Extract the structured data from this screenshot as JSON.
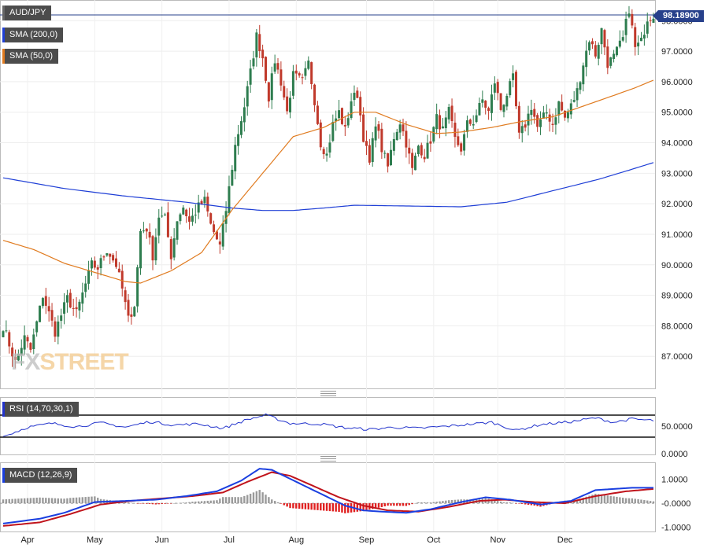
{
  "symbol": "AUD/JPY",
  "current_price": "98.18900",
  "legends": {
    "sma200": "SMA (200,0)",
    "sma50": "SMA (50,0)",
    "rsi": "RSI (14,70,30,1)",
    "macd": "MACD (12,26,9)"
  },
  "colors": {
    "up": "#2e7d4f",
    "down": "#c0392b",
    "sma200": "#1f3fd6",
    "sma50": "#e07b20",
    "rsi": "#2233cc",
    "macd": "#1a3fe0",
    "signal": "#c0141c",
    "hist_pos": "#9a9a9a",
    "hist_neg": "#e02020",
    "price_tag": "#27408b"
  },
  "logo": {
    "part1": "FX",
    "part2": "STREET"
  },
  "chart_data": [
    {
      "type": "candlestick",
      "title": "AUD/JPY",
      "x_labels": [
        "Apr",
        "May",
        "Jun",
        "Jul",
        "Aug",
        "Sep",
        "Oct",
        "Nov",
        "Dec"
      ],
      "y_ticks": [
        "87.0000",
        "88.0000",
        "89.0000",
        "90.0000",
        "91.0000",
        "92.0000",
        "93.0000",
        "94.0000",
        "95.0000",
        "96.0000",
        "97.0000",
        "98.0000"
      ],
      "ylim": [
        86.0,
        98.6
      ],
      "current_price": 98.189,
      "series": [
        {
          "name": "AUD/JPY",
          "close_path": [
            [
              0,
              88.0
            ],
            [
              4,
              86.8
            ],
            [
              7,
              87.6
            ],
            [
              9,
              87.2
            ],
            [
              13,
              89.0
            ],
            [
              17,
              87.8
            ],
            [
              21,
              88.9
            ],
            [
              24,
              88.4
            ],
            [
              29,
              90.0
            ],
            [
              31,
              89.9
            ],
            [
              34,
              90.5
            ],
            [
              37,
              90.0
            ],
            [
              39,
              89.2
            ],
            [
              41,
              88.2
            ],
            [
              43,
              88.7
            ],
            [
              45,
              91.1
            ],
            [
              47,
              91.2
            ],
            [
              49,
              90.3
            ],
            [
              51,
              91.6
            ],
            [
              53,
              91.5
            ],
            [
              55,
              90.3
            ],
            [
              57,
              91.5
            ],
            [
              59,
              91.9
            ],
            [
              61,
              91.4
            ],
            [
              64,
              91.9
            ],
            [
              66,
              92.1
            ],
            [
              68,
              91.3
            ],
            [
              71,
              90.6
            ],
            [
              73,
              91.8
            ],
            [
              76,
              93.9
            ],
            [
              79,
              95.2
            ],
            [
              81,
              96.3
            ],
            [
              83,
              97.5
            ],
            [
              85,
              96.8
            ],
            [
              87,
              95.5
            ],
            [
              89,
              96.7
            ],
            [
              91,
              96.0
            ],
            [
              93,
              95.0
            ],
            [
              95,
              96.2
            ],
            [
              98,
              96.0
            ],
            [
              100,
              96.6
            ],
            [
              102,
              95.4
            ],
            [
              104,
              94.0
            ],
            [
              106,
              93.6
            ],
            [
              108,
              94.6
            ],
            [
              110,
              95.0
            ],
            [
              112,
              94.4
            ],
            [
              114,
              95.4
            ],
            [
              116,
              95.6
            ],
            [
              118,
              94.2
            ],
            [
              120,
              93.3
            ],
            [
              122,
              94.7
            ],
            [
              124,
              93.8
            ],
            [
              126,
              93.2
            ],
            [
              128,
              94.2
            ],
            [
              130,
              94.7
            ],
            [
              132,
              94.0
            ],
            [
              134,
              93.1
            ],
            [
              136,
              93.9
            ],
            [
              138,
              93.6
            ],
            [
              140,
              94.1
            ],
            [
              142,
              94.8
            ],
            [
              144,
              94.4
            ],
            [
              146,
              95.0
            ],
            [
              148,
              94.1
            ],
            [
              150,
              93.8
            ],
            [
              152,
              94.6
            ],
            [
              154,
              94.7
            ],
            [
              157,
              95.4
            ],
            [
              159,
              95.0
            ],
            [
              161,
              96.0
            ],
            [
              163,
              95.1
            ],
            [
              165,
              95.6
            ],
            [
              167,
              96.1
            ],
            [
              169,
              94.2
            ],
            [
              171,
              94.6
            ],
            [
              173,
              95.2
            ],
            [
              175,
              94.5
            ],
            [
              178,
              95.0
            ],
            [
              180,
              94.6
            ],
            [
              182,
              95.3
            ],
            [
              184,
              94.8
            ],
            [
              186,
              95.2
            ],
            [
              188,
              95.7
            ],
            [
              190,
              96.6
            ],
            [
              192,
              97.4
            ],
            [
              194,
              96.9
            ],
            [
              196,
              97.7
            ],
            [
              198,
              96.6
            ],
            [
              200,
              96.8
            ],
            [
              203,
              97.4
            ],
            [
              205,
              98.4
            ],
            [
              207,
              97.1
            ],
            [
              209,
              97.3
            ],
            [
              211,
              98.1
            ],
            [
              213,
              98.2
            ]
          ]
        },
        {
          "name": "SMA (200,0)",
          "path": [
            [
              0,
              92.85
            ],
            [
              20,
              92.5
            ],
            [
              40,
              92.25
            ],
            [
              60,
              92.05
            ],
            [
              75,
              91.86
            ],
            [
              85,
              91.78
            ],
            [
              95,
              91.78
            ],
            [
              105,
              91.86
            ],
            [
              115,
              91.95
            ],
            [
              130,
              91.93
            ],
            [
              150,
              91.9
            ],
            [
              165,
              92.05
            ],
            [
              175,
              92.3
            ],
            [
              185,
              92.55
            ],
            [
              195,
              92.8
            ],
            [
              205,
              93.1
            ],
            [
              213,
              93.35
            ]
          ]
        },
        {
          "name": "SMA (50,0)",
          "path": [
            [
              0,
              90.8
            ],
            [
              10,
              90.5
            ],
            [
              20,
              90.05
            ],
            [
              30,
              89.75
            ],
            [
              40,
              89.45
            ],
            [
              45,
              89.4
            ],
            [
              55,
              89.8
            ],
            [
              65,
              90.4
            ],
            [
              75,
              91.8
            ],
            [
              85,
              93.0
            ],
            [
              95,
              94.2
            ],
            [
              105,
              94.5
            ],
            [
              115,
              95.0
            ],
            [
              122,
              95.0
            ],
            [
              132,
              94.6
            ],
            [
              142,
              94.3
            ],
            [
              150,
              94.35
            ],
            [
              160,
              94.5
            ],
            [
              170,
              94.7
            ],
            [
              180,
              94.85
            ],
            [
              190,
              95.2
            ],
            [
              200,
              95.55
            ],
            [
              207,
              95.8
            ],
            [
              213,
              96.05
            ]
          ]
        }
      ]
    },
    {
      "type": "line",
      "title": "RSI (14,70,30,1)",
      "y_ticks": [
        "0.0000",
        "50.0000"
      ],
      "ylim": [
        0,
        100
      ],
      "levels": [
        70,
        30
      ],
      "series": [
        {
          "name": "RSI (14,70,30,1)",
          "path": [
            [
              0,
              31
            ],
            [
              8,
              48
            ],
            [
              16,
              55
            ],
            [
              24,
              49
            ],
            [
              32,
              56
            ],
            [
              40,
              48
            ],
            [
              48,
              58
            ],
            [
              56,
              52
            ],
            [
              64,
              54
            ],
            [
              72,
              46
            ],
            [
              80,
              62
            ],
            [
              86,
              70
            ],
            [
              94,
              55
            ],
            [
              104,
              54
            ],
            [
              112,
              47
            ],
            [
              120,
              44
            ],
            [
              128,
              48
            ],
            [
              136,
              46
            ],
            [
              148,
              51
            ],
            [
              160,
              57
            ],
            [
              168,
              42
            ],
            [
              176,
              53
            ],
            [
              186,
              58
            ],
            [
              194,
              65
            ],
            [
              200,
              57
            ],
            [
              206,
              63
            ],
            [
              213,
              60
            ]
          ]
        }
      ]
    },
    {
      "type": "line",
      "title": "MACD (12,26,9)",
      "y_ticks": [
        "1.0000",
        "-0.0000",
        "-1.0000"
      ],
      "ylim": [
        -1.15,
        1.65
      ],
      "series": [
        {
          "name": "MACD",
          "path": [
            [
              0,
              -0.85
            ],
            [
              12,
              -0.65
            ],
            [
              20,
              -0.4
            ],
            [
              30,
              0.05
            ],
            [
              40,
              0.1
            ],
            [
              50,
              0.15
            ],
            [
              60,
              0.3
            ],
            [
              70,
              0.5
            ],
            [
              78,
              0.95
            ],
            [
              84,
              1.45
            ],
            [
              88,
              1.4
            ],
            [
              96,
              0.9
            ],
            [
              104,
              0.4
            ],
            [
              112,
              -0.1
            ],
            [
              118,
              -0.3
            ],
            [
              124,
              -0.35
            ],
            [
              132,
              -0.4
            ],
            [
              140,
              -0.25
            ],
            [
              150,
              0.05
            ],
            [
              158,
              0.25
            ],
            [
              166,
              0.15
            ],
            [
              176,
              -0.05
            ],
            [
              186,
              0.1
            ],
            [
              194,
              0.55
            ],
            [
              206,
              0.65
            ],
            [
              213,
              0.65
            ]
          ]
        },
        {
          "name": "Signal",
          "path": [
            [
              0,
              -0.95
            ],
            [
              12,
              -0.8
            ],
            [
              22,
              -0.45
            ],
            [
              32,
              -0.05
            ],
            [
              42,
              0.1
            ],
            [
              52,
              0.2
            ],
            [
              62,
              0.3
            ],
            [
              72,
              0.45
            ],
            [
              80,
              0.9
            ],
            [
              88,
              1.3
            ],
            [
              94,
              1.15
            ],
            [
              102,
              0.7
            ],
            [
              110,
              0.25
            ],
            [
              118,
              -0.1
            ],
            [
              126,
              -0.3
            ],
            [
              136,
              -0.35
            ],
            [
              146,
              -0.15
            ],
            [
              156,
              0.1
            ],
            [
              164,
              0.15
            ],
            [
              174,
              0.05
            ],
            [
              184,
              0.0
            ],
            [
              194,
              0.3
            ],
            [
              204,
              0.5
            ],
            [
              213,
              0.6
            ]
          ]
        }
      ]
    }
  ]
}
